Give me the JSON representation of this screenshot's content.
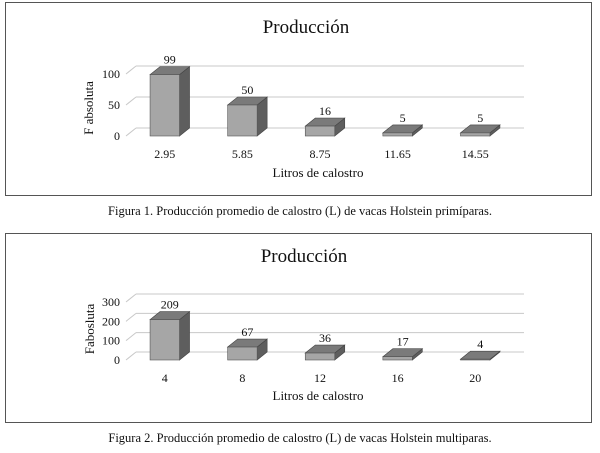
{
  "chart_data": [
    {
      "type": "bar",
      "title": "Producción",
      "xlabel": "Litros  de calostro",
      "ylabel": "F absoluta",
      "categories": [
        "2.95",
        "5.85",
        "8.75",
        "11.65",
        "14.55"
      ],
      "values": [
        99,
        50,
        16,
        5,
        5
      ],
      "yticks": [
        "0",
        "50",
        "100"
      ],
      "ylim": [
        0,
        100
      ],
      "bar_color": "#a6a6a6",
      "grid": true,
      "style": "3d-column"
    },
    {
      "type": "bar",
      "title": "Producción",
      "xlabel": "Litros de calostro",
      "ylabel": "Fabosluta",
      "categories": [
        "4",
        "8",
        "12",
        "16",
        "20"
      ],
      "values": [
        209,
        67,
        36,
        17,
        4
      ],
      "yticks": [
        "0",
        "100",
        "200",
        "300"
      ],
      "ylim": [
        0,
        300
      ],
      "bar_color": "#a6a6a6",
      "grid": true,
      "style": "3d-column"
    }
  ],
  "captions": [
    "Figura 1. Producción promedio de calostro (L) de vacas Holstein primíparas.",
    "Figura 2. Producción promedio de calostro (L) de vacas Holstein multiparas."
  ]
}
